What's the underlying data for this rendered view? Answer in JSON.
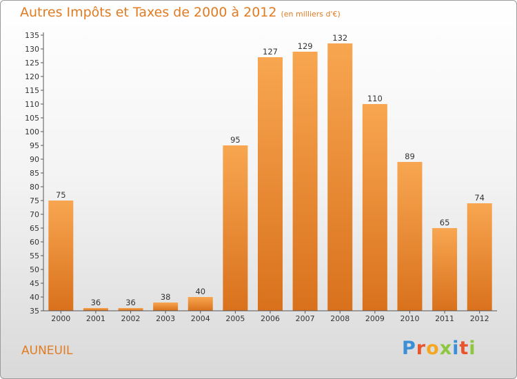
{
  "title": "Autres Impôts et Taxes de 2000 à 2012",
  "subtitle": "(en milliers d'€)",
  "commune": "AUNEUIL",
  "logo": {
    "letters": [
      "P",
      "r",
      "o",
      "x",
      "i",
      "t",
      "i"
    ],
    "colors": [
      "#3a8fd6",
      "#e8542b",
      "#f5a623",
      "#8dc63f",
      "#3a8fd6",
      "#e8542b",
      "#8dc63f"
    ]
  },
  "colors": {
    "accent": "#e07b22",
    "bar_top": "#f8a651",
    "bar_bottom": "#d9711c"
  },
  "chart_data": {
    "type": "bar",
    "title": "Autres Impôts et Taxes de 2000 à 2012",
    "subtitle": "(en milliers d'€)",
    "xlabel": "",
    "ylabel": "",
    "categories": [
      "2000",
      "2001",
      "2002",
      "2003",
      "2004",
      "2005",
      "2006",
      "2007",
      "2008",
      "2009",
      "2010",
      "2011",
      "2012"
    ],
    "values": [
      75,
      36,
      36,
      38,
      40,
      95,
      127,
      129,
      132,
      110,
      89,
      65,
      74
    ],
    "ylim": [
      35,
      135
    ],
    "yticks": [
      35,
      40,
      45,
      50,
      55,
      60,
      65,
      70,
      75,
      80,
      85,
      90,
      95,
      100,
      105,
      110,
      115,
      120,
      125,
      130,
      135
    ],
    "grid": false,
    "legend": "none"
  }
}
